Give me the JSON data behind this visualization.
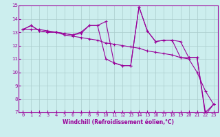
{
  "x": [
    0,
    1,
    2,
    3,
    4,
    5,
    6,
    7,
    8,
    9,
    10,
    11,
    12,
    13,
    14,
    15,
    16,
    17,
    18,
    19,
    20,
    21,
    22,
    23
  ],
  "line1": [
    13.2,
    13.5,
    13.1,
    13.0,
    13.0,
    12.9,
    12.8,
    13.0,
    13.5,
    13.5,
    13.8,
    10.7,
    10.5,
    10.5,
    14.9,
    13.1,
    12.3,
    12.4,
    12.4,
    12.3,
    11.1,
    11.1,
    7.0,
    7.6
  ],
  "line2": [
    13.2,
    13.5,
    13.1,
    13.0,
    13.0,
    12.9,
    12.8,
    12.9,
    13.5,
    13.5,
    11.0,
    10.7,
    10.5,
    10.5,
    14.9,
    13.1,
    12.3,
    12.4,
    12.4,
    11.1,
    11.1,
    11.1,
    6.8,
    7.6
  ],
  "line3": [
    13.2,
    13.2,
    13.2,
    13.1,
    13.0,
    12.8,
    12.7,
    12.6,
    12.5,
    12.4,
    12.2,
    12.1,
    12.0,
    11.9,
    11.8,
    11.6,
    11.5,
    11.4,
    11.3,
    11.1,
    11.0,
    10.0,
    8.6,
    7.6
  ],
  "color": "#990099",
  "bg_color": "#cceeee",
  "grid_color": "#aacccc",
  "xlabel": "Windchill (Refroidissement éolien,°C)",
  "ylim": [
    7,
    15
  ],
  "xlim": [
    -0.5,
    23.5
  ],
  "yticks": [
    7,
    8,
    9,
    10,
    11,
    12,
    13,
    14,
    15
  ],
  "xticks": [
    0,
    1,
    2,
    3,
    4,
    5,
    6,
    7,
    8,
    9,
    10,
    11,
    12,
    13,
    14,
    15,
    16,
    17,
    18,
    19,
    20,
    21,
    22,
    23
  ],
  "tick_fontsize": 5.0,
  "xlabel_fontsize": 5.5,
  "linewidth": 0.8,
  "markersize": 3.5
}
